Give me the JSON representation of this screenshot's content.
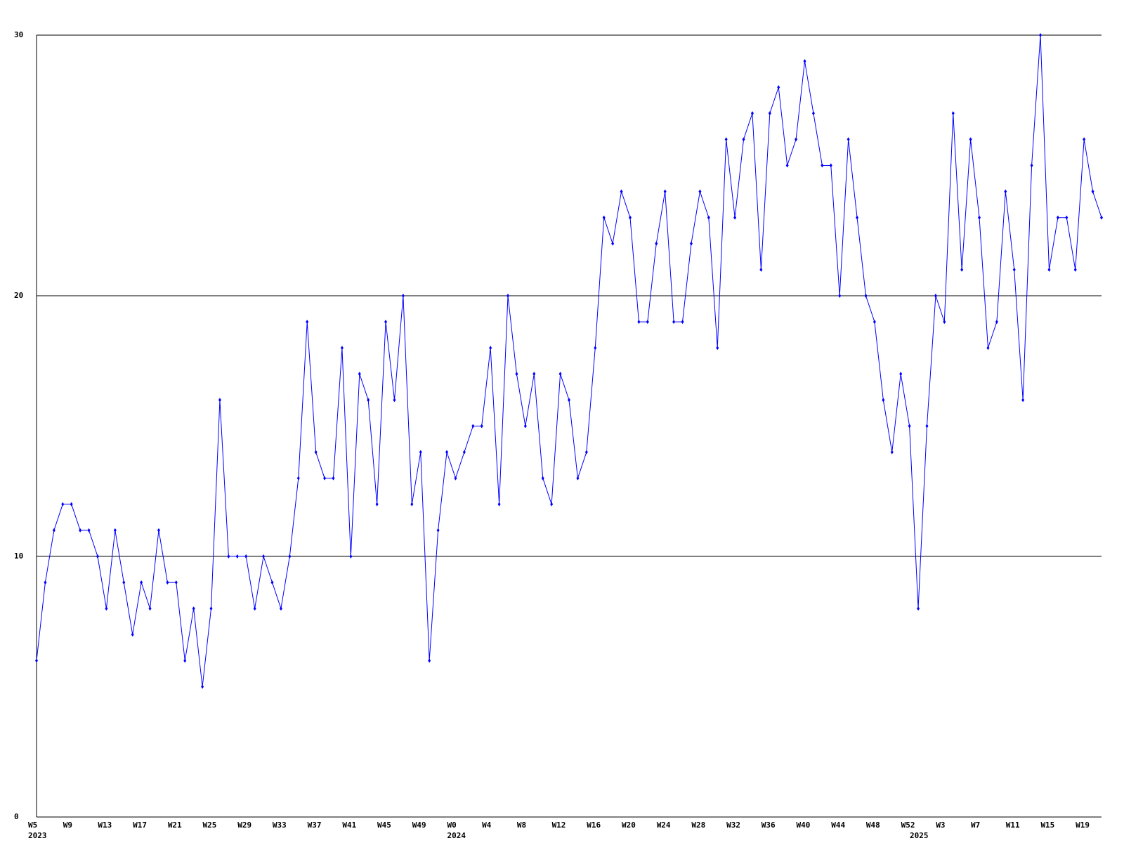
{
  "chart_data": {
    "type": "line",
    "color": "#0000ff",
    "grid": true,
    "ylim": [
      0,
      30
    ],
    "yticks": [
      0,
      10,
      20,
      30
    ],
    "categories": [
      "W5",
      null,
      null,
      null,
      "W9",
      null,
      null,
      null,
      "W13",
      null,
      null,
      null,
      "W17",
      null,
      null,
      null,
      "W21",
      null,
      null,
      null,
      "W25",
      null,
      null,
      null,
      "W29",
      null,
      null,
      null,
      "W33",
      null,
      null,
      null,
      "W37",
      null,
      null,
      null,
      "W41",
      null,
      null,
      null,
      "W45",
      null,
      null,
      null,
      "W49",
      null,
      null,
      null,
      "W0",
      null,
      null,
      null,
      "W4",
      null,
      null,
      null,
      "W8",
      null,
      null,
      null,
      "W12",
      null,
      null,
      null,
      "W16",
      null,
      null,
      null,
      "W20",
      null,
      null,
      null,
      "W24",
      null,
      null,
      null,
      "W28",
      null,
      null,
      null,
      "W32",
      null,
      null,
      null,
      "W36",
      null,
      null,
      null,
      "W40",
      null,
      null,
      null,
      "W44",
      null,
      null,
      null,
      "W48",
      null,
      null,
      null,
      "W52",
      null,
      null,
      null,
      "W3",
      null,
      null,
      null,
      "W7",
      null,
      null,
      null,
      "W11",
      null,
      null,
      null,
      "W15",
      null,
      null,
      null,
      "W19",
      null,
      null
    ],
    "year_labels": [
      {
        "index": 0,
        "label": "2023"
      },
      {
        "index": 48,
        "label": "2024"
      },
      {
        "index": 101,
        "label": "2025"
      }
    ],
    "values": [
      6,
      9,
      11,
      12,
      12,
      11,
      11,
      10,
      8,
      11,
      9,
      7,
      9,
      8,
      11,
      9,
      9,
      6,
      8,
      5,
      8,
      16,
      10,
      10,
      10,
      8,
      10,
      9,
      8,
      10,
      13,
      19,
      14,
      13,
      13,
      18,
      10,
      17,
      16,
      12,
      19,
      16,
      20,
      12,
      14,
      6,
      11,
      14,
      13,
      14,
      15,
      15,
      18,
      12,
      20,
      17,
      15,
      17,
      13,
      12,
      17,
      16,
      13,
      14,
      18,
      23,
      22,
      24,
      23,
      19,
      19,
      22,
      24,
      19,
      19,
      22,
      24,
      23,
      18,
      26,
      23,
      26,
      27,
      21,
      27,
      28,
      25,
      26,
      29,
      27,
      25,
      25,
      20,
      26,
      23,
      20,
      19,
      16,
      14,
      17,
      15,
      8,
      15,
      20,
      19,
      27,
      21,
      26,
      23,
      18,
      19,
      24,
      21,
      16,
      25,
      30,
      21,
      23,
      23,
      21,
      26,
      24,
      23
    ]
  }
}
